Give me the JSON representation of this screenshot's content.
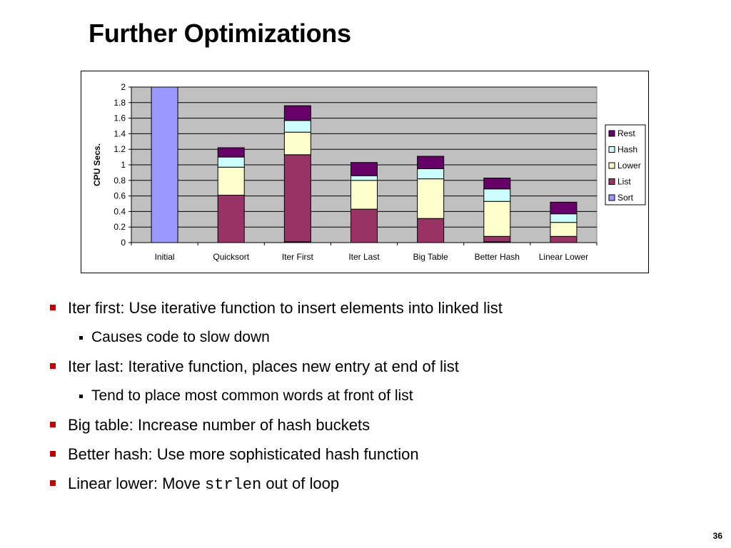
{
  "slide": {
    "title": "Further Optimizations",
    "page_number": "36"
  },
  "colors": {
    "Sort": "#9999ff",
    "List": "#993366",
    "Lower": "#ffffcc",
    "Hash": "#ccffff",
    "Rest": "#660066",
    "plot_background": "#c0c0c0"
  },
  "chart_data": {
    "type": "bar",
    "stacked": true,
    "title": "",
    "xlabel": "",
    "ylabel": "CPU Secs.",
    "ylim": [
      0,
      2
    ],
    "yticks": [
      "0",
      "0.2",
      "0.4",
      "0.6",
      "0.8",
      "1",
      "1.2",
      "1.4",
      "1.6",
      "1.8",
      "2"
    ],
    "grid": true,
    "legend_position": "right",
    "categories": [
      "Initial",
      "Quicksort",
      "Iter First",
      "Iter Last",
      "Big Table",
      "Better Hash",
      "Linear Lower"
    ],
    "series": [
      {
        "name": "Sort",
        "values": [
          2.0,
          0.0,
          0.01,
          0.0,
          0.0,
          0.01,
          0.0
        ]
      },
      {
        "name": "List",
        "values": [
          0.0,
          0.61,
          1.12,
          0.43,
          0.31,
          0.07,
          0.08
        ]
      },
      {
        "name": "Lower",
        "values": [
          0.0,
          0.36,
          0.29,
          0.37,
          0.51,
          0.45,
          0.18
        ]
      },
      {
        "name": "Hash",
        "values": [
          0.0,
          0.13,
          0.15,
          0.06,
          0.13,
          0.16,
          0.11
        ]
      },
      {
        "name": "Rest",
        "values": [
          0.0,
          0.12,
          0.19,
          0.17,
          0.16,
          0.14,
          0.15
        ]
      }
    ],
    "legend_order": [
      "Rest",
      "Hash",
      "Lower",
      "List",
      "Sort"
    ]
  },
  "bullets": [
    {
      "level": 1,
      "text": "Iter first: Use iterative function to insert elements into linked list"
    },
    {
      "level": 2,
      "text": "Causes code to slow down"
    },
    {
      "level": 1,
      "text": "Iter last: Iterative function, places new entry at end of list"
    },
    {
      "level": 2,
      "text": "Tend to place most common words at front of list"
    },
    {
      "level": 1,
      "text": "Big table: Increase number of hash buckets"
    },
    {
      "level": 1,
      "text": "Better hash: Use more sophisticated hash function"
    },
    {
      "level": 1,
      "before": "Linear lower: Move ",
      "code": "strlen",
      "after": " out of loop"
    }
  ]
}
